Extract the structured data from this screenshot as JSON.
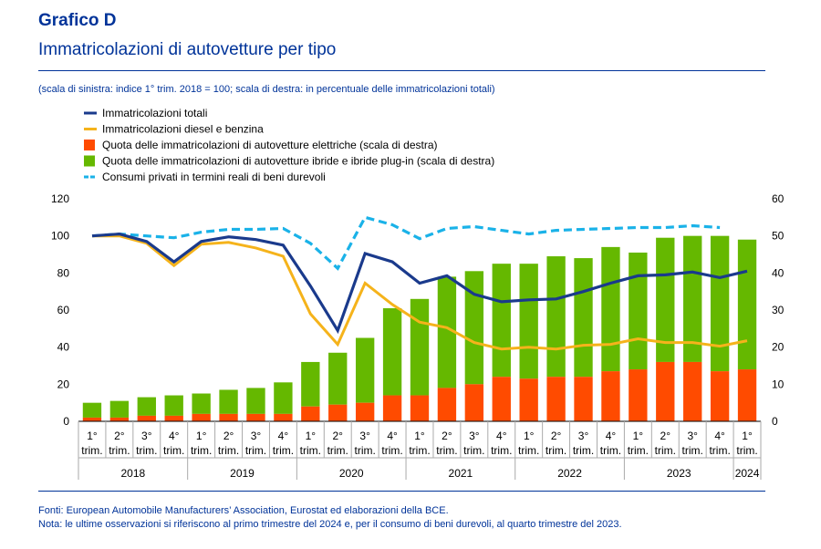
{
  "header": {
    "title": "Grafico D",
    "subtitle": "Immatricolazioni di autovetture per tipo",
    "scale_note": "(scala di sinistra: indice 1° trim. 2018 = 100; scala di destra: in percentuale delle immatricolazioni totali)"
  },
  "footer": {
    "sources": "Fonti: European Automobile Manufacturers’ Association, Eurostat ed elaborazioni della BCE.",
    "note": "Nota: le ultime osservazioni si riferiscono al primo trimestre del 2024 e, per il consumo di beni durevoli, al quarto trimestre del 2023."
  },
  "colors": {
    "navy": "#1a3a8c",
    "orange_line": "#f5b31b",
    "red_bar": "#ff4b00",
    "green_bar": "#65b800",
    "cyan_dash": "#1ab2e8",
    "brand": "#003399"
  },
  "chart_data": {
    "type": "bar",
    "title": "Immatricolazioni di autovetture per tipo",
    "quarter_labels": [
      "1°",
      "2°",
      "3°",
      "4°",
      "1°",
      "2°",
      "3°",
      "4°",
      "1°",
      "2°",
      "3°",
      "4°",
      "1°",
      "2°",
      "3°",
      "4°",
      "1°",
      "2°",
      "3°",
      "4°",
      "1°",
      "2°",
      "3°",
      "4°",
      "1°"
    ],
    "quarter_sublabel": "trim.",
    "years": [
      {
        "label": "2018",
        "quarters": 4
      },
      {
        "label": "2019",
        "quarters": 4
      },
      {
        "label": "2020",
        "quarters": 4
      },
      {
        "label": "2021",
        "quarters": 4
      },
      {
        "label": "2022",
        "quarters": 4
      },
      {
        "label": "2023",
        "quarters": 4
      },
      {
        "label": "2024",
        "quarters": 1
      }
    ],
    "y_left": {
      "min": 0,
      "max": 120,
      "ticks": [
        0,
        20,
        40,
        60,
        80,
        100,
        120
      ]
    },
    "y_right": {
      "min": 0,
      "max": 60,
      "ticks": [
        0,
        10,
        20,
        30,
        40,
        50,
        60
      ]
    },
    "legend": [
      {
        "label": "Immatricolazioni totali",
        "kind": "line",
        "color": "#1a3a8c"
      },
      {
        "label": "Immatricolazioni diesel e benzina",
        "kind": "line",
        "color": "#f5b31b"
      },
      {
        "label": "Quota delle immatricolazioni di autovetture elettriche (scala di destra)",
        "kind": "bar",
        "color": "#ff4b00"
      },
      {
        "label": "Quota delle immatricolazioni di autovetture ibride e ibride plug-in (scala di destra)",
        "kind": "bar",
        "color": "#65b800"
      },
      {
        "label": "Consumi privati in termini reali di beni durevoli",
        "kind": "dash",
        "color": "#1ab2e8"
      }
    ],
    "series": [
      {
        "name": "Immatricolazioni totali",
        "axis": "left",
        "type": "line",
        "values": [
          100,
          101,
          97,
          86,
          97,
          99.5,
          98,
          95,
          73,
          49,
          90.5,
          86,
          74.5,
          78.5,
          68.5,
          64.5,
          65.5,
          66,
          70,
          74.5,
          78.5,
          79,
          80.5,
          77.5,
          81
        ]
      },
      {
        "name": "Immatricolazioni diesel e benzina",
        "axis": "left",
        "type": "line",
        "values": [
          100,
          100,
          96,
          84,
          95.5,
          96.5,
          93.5,
          89,
          58,
          41.5,
          74.5,
          63,
          53.5,
          50.5,
          42.5,
          39,
          40,
          39,
          41,
          41.5,
          44.5,
          42.5,
          42.5,
          40.5,
          43.5
        ]
      },
      {
        "name": "Quota delle immatricolazioni di autovetture elettriche (scala di destra)",
        "axis": "right",
        "type": "bar",
        "values": [
          1,
          1,
          1.5,
          1.5,
          2,
          2,
          2,
          2,
          4,
          4.5,
          5,
          7,
          7,
          9,
          10,
          12,
          11.5,
          12,
          12,
          13.5,
          14,
          16,
          16,
          13.5,
          14
        ]
      },
      {
        "name": "Quota delle immatricolazioni di autovetture ibride e ibride plug-in (scala di destra)",
        "axis": "right",
        "type": "bar",
        "values": [
          4,
          4.5,
          5,
          5.5,
          5.5,
          6.5,
          7,
          8.5,
          12,
          14,
          17.5,
          23.5,
          26,
          30,
          30.5,
          30.5,
          31,
          32.5,
          32,
          33.5,
          31.5,
          33.5,
          34,
          36.5,
          35
        ]
      },
      {
        "name": "Consumi privati in termini reali di beni durevoli",
        "axis": "left",
        "type": "dash",
        "values": [
          100,
          101,
          100,
          99,
          102,
          103.5,
          103.5,
          104,
          96,
          82.5,
          110,
          106,
          98.5,
          104,
          105,
          103,
          101,
          103,
          103.5,
          104,
          104.5,
          104.5,
          105.5,
          104.5
        ]
      }
    ]
  }
}
